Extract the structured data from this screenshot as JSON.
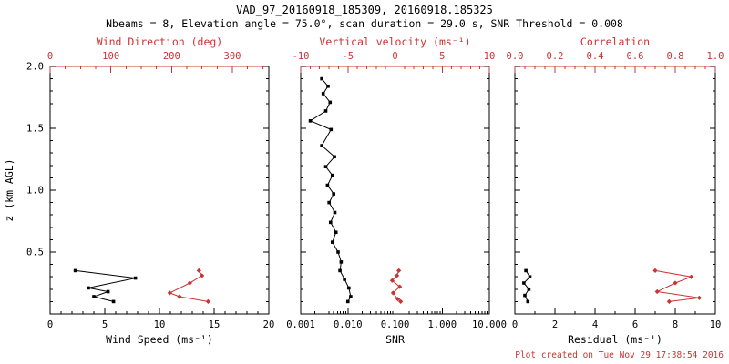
{
  "page": {
    "title": "VAD_97_20160918_185309, 20160918.185325",
    "subtitle": "Nbeams = 8, Elevation angle = 75.0°, scan duration = 29.0 s, SNR Threshold = 0.008",
    "footer": "Plot created on Tue Nov 29 17:38:54 2016"
  },
  "colors": {
    "foreground": "#000000",
    "accent": "#cc3333"
  },
  "chart_data": [
    {
      "type": "line",
      "id": "wind-panel",
      "ylabel": "z (km AGL)",
      "ylim": [
        0.0,
        2.0
      ],
      "yticks": [
        0.5,
        1.0,
        1.5,
        2.0
      ],
      "ytick_labels": [
        "0.5",
        "1.0",
        "1.5",
        "2.0"
      ],
      "y_minor_step": 0.1,
      "bottom_axis": {
        "label": "Wind Speed (ms⁻¹)",
        "lim": [
          0,
          20
        ],
        "scale": "linear",
        "ticks": [
          0,
          5,
          10,
          15,
          20
        ],
        "tick_labels": [
          "0",
          "5",
          "10",
          "15",
          "20"
        ],
        "minor_step": 1
      },
      "top_axis": {
        "label": "Wind Direction (deg)",
        "lim": [
          0,
          360
        ],
        "scale": "linear",
        "ticks": [
          0,
          100,
          200,
          300
        ],
        "tick_labels": [
          "0",
          "100",
          "200",
          "300"
        ],
        "minor_step": 25
      },
      "series": [
        {
          "name": "wind-speed",
          "axis": "bottom",
          "color": "black",
          "marker": "square",
          "points": [
            [
              2.3,
              0.35
            ],
            [
              7.8,
              0.29
            ],
            [
              3.5,
              0.21
            ],
            [
              5.3,
              0.18
            ],
            [
              4.0,
              0.14
            ],
            [
              5.8,
              0.1
            ]
          ]
        },
        {
          "name": "wind-direction",
          "axis": "top",
          "color": "accent",
          "marker": "diamond",
          "points": [
            [
              245,
              0.35
            ],
            [
              250,
              0.31
            ],
            [
              230,
              0.25
            ],
            [
              197,
              0.17
            ],
            [
              213,
              0.14
            ],
            [
              260,
              0.1
            ]
          ]
        }
      ]
    },
    {
      "type": "line",
      "id": "snr-panel",
      "ylabel": "",
      "ylim": [
        0.0,
        2.0
      ],
      "yticks": [
        0.5,
        1.0,
        1.5,
        2.0
      ],
      "ytick_labels": [],
      "y_minor_step": 0.1,
      "bottom_axis": {
        "label": "SNR",
        "lim": [
          0.001,
          10.0
        ],
        "scale": "log",
        "ticks": [
          0.001,
          0.01,
          0.1,
          1.0,
          10.0
        ],
        "tick_labels": [
          "0.001",
          "0.010",
          "0.100",
          "1.000",
          "10.000"
        ]
      },
      "top_axis": {
        "label": "Vertical velocity (ms⁻¹)",
        "lim": [
          -10,
          10
        ],
        "scale": "linear",
        "ticks": [
          -10,
          -5,
          0,
          5,
          10
        ],
        "tick_labels": [
          "-10",
          "-5",
          "0",
          "5",
          "10"
        ],
        "minor_step": 1
      },
      "refline": {
        "axis": "top",
        "value": 0.0
      },
      "series": [
        {
          "name": "snr",
          "axis": "bottom",
          "color": "black",
          "marker": "square",
          "points": [
            [
              0.0028,
              1.9
            ],
            [
              0.0038,
              1.84
            ],
            [
              0.003,
              1.78
            ],
            [
              0.0042,
              1.71
            ],
            [
              0.0034,
              1.64
            ],
            [
              0.0016,
              1.56
            ],
            [
              0.0044,
              1.49
            ],
            [
              0.0028,
              1.36
            ],
            [
              0.0052,
              1.27
            ],
            [
              0.0034,
              1.19
            ],
            [
              0.0047,
              1.12
            ],
            [
              0.0037,
              1.04
            ],
            [
              0.005,
              0.97
            ],
            [
              0.004,
              0.9
            ],
            [
              0.0053,
              0.82
            ],
            [
              0.0043,
              0.74
            ],
            [
              0.0056,
              0.66
            ],
            [
              0.0047,
              0.58
            ],
            [
              0.0062,
              0.5
            ],
            [
              0.0072,
              0.42
            ],
            [
              0.0068,
              0.35
            ],
            [
              0.0085,
              0.28
            ],
            [
              0.0105,
              0.21
            ],
            [
              0.0115,
              0.14
            ],
            [
              0.01,
              0.1
            ]
          ]
        },
        {
          "name": "vertical-velocity",
          "axis": "top",
          "color": "accent",
          "marker": "diamond",
          "points": [
            [
              0.4,
              0.35
            ],
            [
              0.2,
              0.31
            ],
            [
              -0.3,
              0.27
            ],
            [
              0.5,
              0.22
            ],
            [
              -0.2,
              0.17
            ],
            [
              0.3,
              0.12
            ],
            [
              0.6,
              0.1
            ]
          ]
        }
      ]
    },
    {
      "type": "line",
      "id": "residual-panel",
      "ylabel": "",
      "ylim": [
        0.0,
        2.0
      ],
      "yticks": [
        0.5,
        1.0,
        1.5,
        2.0
      ],
      "ytick_labels": [],
      "y_minor_step": 0.1,
      "bottom_axis": {
        "label": "Residual (ms⁻¹)",
        "lim": [
          0,
          10
        ],
        "scale": "linear",
        "ticks": [
          0,
          2,
          4,
          6,
          8,
          10
        ],
        "tick_labels": [
          "0",
          "2",
          "4",
          "6",
          "8",
          "10"
        ],
        "minor_step": 1
      },
      "top_axis": {
        "label": "Correlation",
        "lim": [
          0.0,
          1.0
        ],
        "scale": "linear",
        "ticks": [
          0.0,
          0.2,
          0.4,
          0.6,
          0.8,
          1.0
        ],
        "tick_labels": [
          "0.0",
          "0.2",
          "0.4",
          "0.6",
          "0.8",
          "1.0"
        ],
        "minor_step": 0.05
      },
      "series": [
        {
          "name": "residual",
          "axis": "bottom",
          "color": "black",
          "marker": "square",
          "points": [
            [
              0.55,
              0.35
            ],
            [
              0.75,
              0.3
            ],
            [
              0.45,
              0.25
            ],
            [
              0.7,
              0.2
            ],
            [
              0.5,
              0.15
            ],
            [
              0.65,
              0.1
            ]
          ]
        },
        {
          "name": "correlation",
          "axis": "top",
          "color": "accent",
          "marker": "diamond",
          "points": [
            [
              0.7,
              0.35
            ],
            [
              0.88,
              0.3
            ],
            [
              0.8,
              0.25
            ],
            [
              0.71,
              0.18
            ],
            [
              0.92,
              0.13
            ],
            [
              0.77,
              0.1
            ]
          ]
        }
      ]
    }
  ]
}
